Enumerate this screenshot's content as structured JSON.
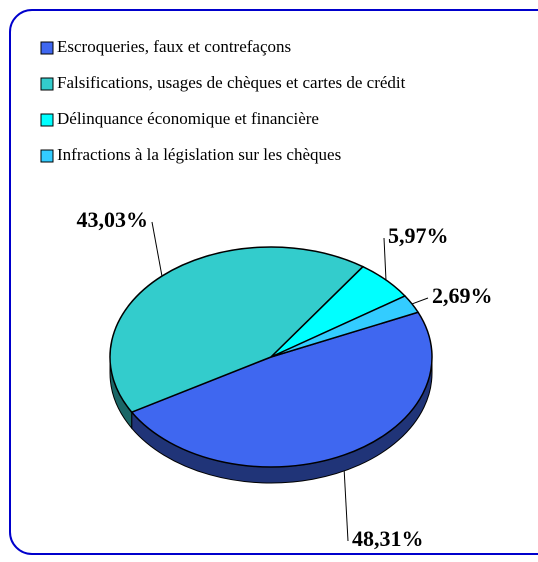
{
  "chart_data": {
    "type": "pie",
    "categories": [
      "Escroqueries, faux et contrefaçons",
      "Falsifications, usages de chèques et cartes de crédit",
      "Délinquance économique et financière",
      "Infractions à la législation sur les chèques"
    ],
    "values": [
      48.31,
      43.03,
      5.97,
      2.69
    ],
    "value_labels": [
      "48,31%",
      "43,03%",
      "5,97%",
      "2,69%"
    ],
    "colors": [
      "#3f67f0",
      "#33cccc",
      "#00ffff",
      "#33ccff"
    ],
    "legend": "top"
  }
}
